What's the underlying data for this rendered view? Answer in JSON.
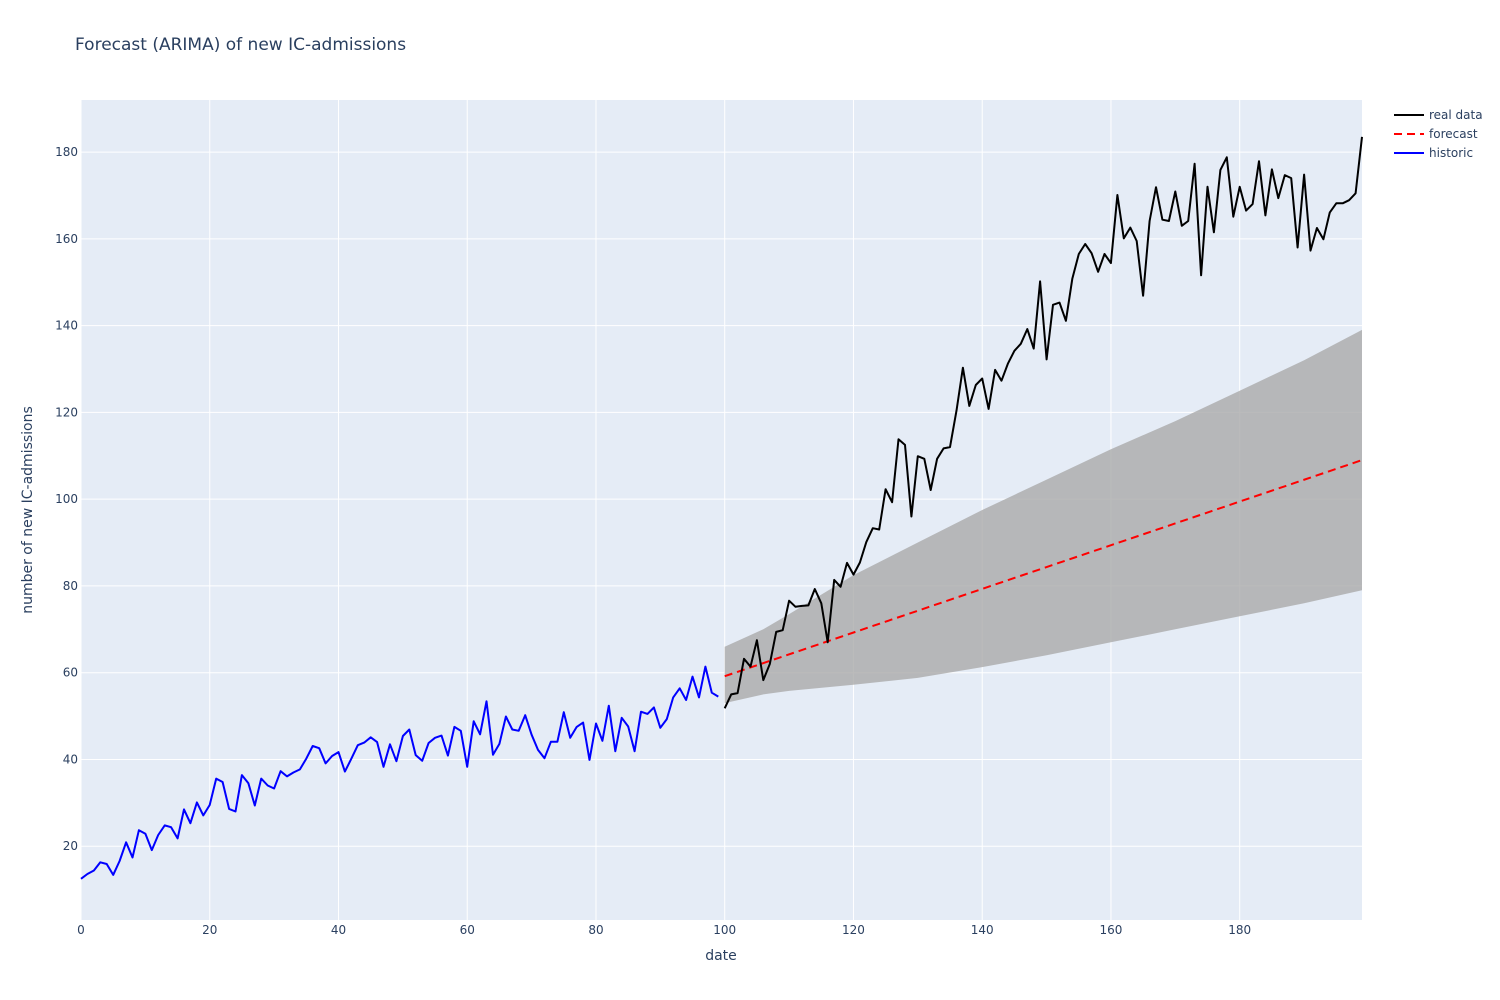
{
  "chart_data": {
    "type": "line",
    "title": "Forecast (ARIMA) of new IC-admissions",
    "xlabel": "date",
    "ylabel": "number of new IC-admissions",
    "xlim": [
      0,
      199
    ],
    "ylim": [
      3,
      192
    ],
    "x_ticks": [
      0,
      20,
      40,
      60,
      80,
      100,
      120,
      140,
      160,
      180
    ],
    "y_ticks": [
      20,
      40,
      60,
      80,
      100,
      120,
      140,
      160,
      180
    ],
    "grid": true,
    "legend_position": "top-right",
    "colors": {
      "plot_bg": "#e5ecf6",
      "grid": "#ffffff",
      "real_data": "#000000",
      "forecast": "#ff0000",
      "historic": "#0000ff",
      "confidence_band": "#aaaaaa"
    },
    "series": [
      {
        "name": "real data",
        "style": "solid",
        "x_start": 100,
        "values": [
          51.8,
          55.0,
          55.3,
          63.2,
          61.4,
          67.5,
          58.3,
          62.0,
          69.4,
          69.8,
          76.6,
          75.2,
          75.4,
          75.5,
          79.3,
          76.0,
          67.0,
          81.4,
          79.8,
          85.3,
          82.6,
          85.4,
          90.1,
          93.3,
          93.0,
          102.3,
          99.3,
          113.8,
          112.5,
          96.0,
          109.9,
          109.3,
          102.1,
          109.3,
          111.7,
          112.0,
          120.4,
          130.3,
          121.5,
          126.3,
          127.8,
          120.8,
          129.8,
          127.3,
          131.3,
          134.2,
          135.8,
          139.2,
          134.7,
          150.2,
          132.2,
          144.8,
          145.3,
          141.1,
          150.8,
          156.5,
          158.8,
          156.7,
          152.4,
          156.5,
          154.4,
          170.1,
          160.1,
          162.6,
          159.5,
          146.9,
          164.1,
          171.9,
          164.4,
          164.1,
          170.9,
          163.0,
          164.1,
          177.3,
          151.6,
          172.0,
          161.5,
          175.9,
          178.8,
          165.1,
          172.0,
          166.5,
          168.0,
          177.9,
          165.4,
          176.0,
          169.4,
          174.7,
          174.0,
          158.0,
          174.8,
          157.3,
          162.5,
          159.9,
          166.1,
          168.2,
          168.2,
          168.9,
          170.5,
          183.5
        ]
      },
      {
        "name": "forecast",
        "style": "dash",
        "x": [
          100,
          199
        ],
        "values": [
          59.2,
          109.0
        ]
      },
      {
        "name": "historic",
        "style": "solid",
        "x_start": 0,
        "values": [
          12.5,
          13.6,
          14.4,
          16.3,
          15.9,
          13.4,
          16.6,
          20.9,
          17.4,
          23.7,
          22.9,
          19.1,
          22.6,
          24.8,
          24.4,
          21.8,
          28.5,
          25.3,
          30.1,
          27.1,
          29.5,
          35.6,
          34.8,
          28.6,
          28.0,
          36.4,
          34.5,
          29.4,
          35.6,
          34.0,
          33.3,
          37.3,
          36.1,
          37.0,
          37.7,
          40.2,
          43.1,
          42.6,
          39.1,
          40.8,
          41.7,
          37.2,
          40.2,
          43.3,
          43.9,
          45.1,
          44.0,
          38.3,
          43.5,
          39.6,
          45.4,
          46.9,
          41.0,
          39.7,
          43.8,
          45.0,
          45.5,
          40.9,
          47.5,
          46.6,
          38.3,
          48.8,
          45.8,
          53.4,
          41.1,
          43.6,
          49.9,
          46.9,
          46.6,
          50.2,
          45.7,
          42.2,
          40.3,
          44.1,
          44.1,
          50.9,
          45.0,
          47.5,
          48.5,
          39.9,
          48.3,
          44.3,
          52.4,
          41.9,
          49.6,
          47.6,
          41.9,
          51.0,
          50.5,
          52.0,
          47.3,
          49.3,
          54.3,
          56.4,
          53.7,
          59.1,
          54.3,
          61.4,
          55.4,
          54.5
        ]
      }
    ],
    "confidence_band": {
      "x": [
        100,
        106,
        110,
        120,
        130,
        140,
        150,
        160,
        170,
        180,
        190,
        199
      ],
      "upper": [
        66.0,
        70.0,
        73.5,
        82.5,
        90.0,
        97.5,
        104.5,
        111.5,
        118.0,
        125.0,
        132.0,
        139.0
      ],
      "lower": [
        53.0,
        55.0,
        55.8,
        57.2,
        58.8,
        61.3,
        64.0,
        67.0,
        70.0,
        73.0,
        76.0,
        79.0
      ]
    }
  }
}
